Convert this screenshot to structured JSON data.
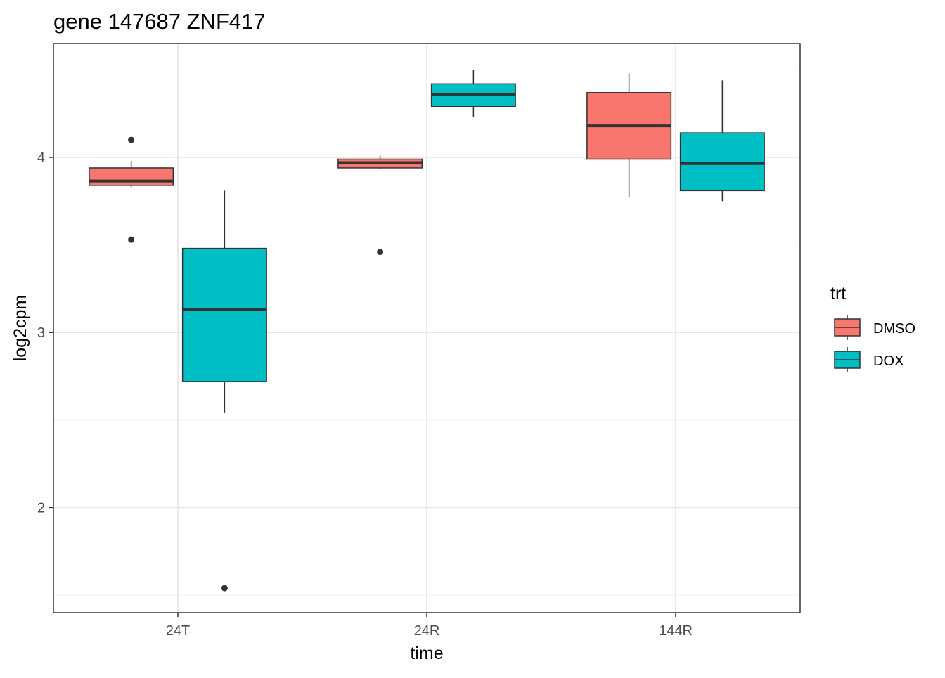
{
  "chart_data": {
    "type": "boxplot",
    "title": "gene 147687 ZNF417",
    "xlabel": "time",
    "ylabel": "log2cpm",
    "categories": [
      "24T",
      "24R",
      "144R"
    ],
    "ylim": [
      1.4,
      4.65
    ],
    "yticks": [
      2,
      3,
      4
    ],
    "grid": true,
    "legend": {
      "title": "trt",
      "position": "right",
      "entries": [
        "DMSO",
        "DOX"
      ]
    },
    "series": [
      {
        "name": "DMSO",
        "color": "#F8766D",
        "boxes": [
          {
            "category": "24T",
            "whisker_low": 3.83,
            "q1": 3.84,
            "median": 3.865,
            "q3": 3.94,
            "whisker_high": 3.98,
            "outliers": [
              4.1,
              3.53
            ]
          },
          {
            "category": "24R",
            "whisker_low": 3.93,
            "q1": 3.94,
            "median": 3.97,
            "q3": 3.99,
            "whisker_high": 4.01,
            "outliers": [
              3.46
            ]
          },
          {
            "category": "144R",
            "whisker_low": 3.77,
            "q1": 3.99,
            "median": 4.18,
            "q3": 4.37,
            "whisker_high": 4.48,
            "outliers": []
          }
        ]
      },
      {
        "name": "DOX",
        "color": "#00BFC4",
        "boxes": [
          {
            "category": "24T",
            "whisker_low": 2.54,
            "q1": 2.72,
            "median": 3.13,
            "q3": 3.48,
            "whisker_high": 3.81,
            "outliers": [
              1.54
            ]
          },
          {
            "category": "24R",
            "whisker_low": 4.23,
            "q1": 4.29,
            "median": 4.36,
            "q3": 4.42,
            "whisker_high": 4.5,
            "outliers": []
          },
          {
            "category": "144R",
            "whisker_low": 3.75,
            "q1": 3.81,
            "median": 3.965,
            "q3": 4.14,
            "whisker_high": 4.44,
            "outliers": []
          }
        ]
      }
    ]
  }
}
